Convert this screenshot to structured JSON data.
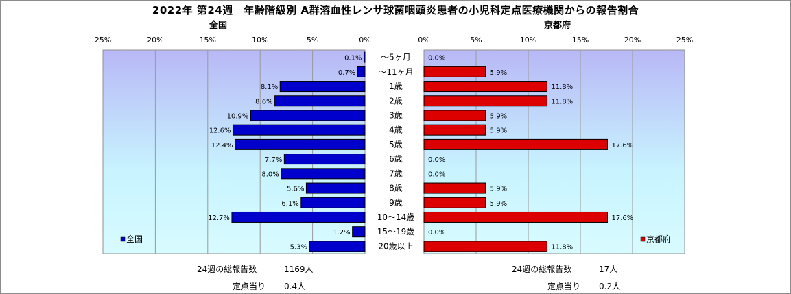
{
  "title": "2022年 第24週　年齢階級別 A群溶血性レンサ球菌咽頭炎患者の小児科定点医療機関からの報告割合",
  "colors": {
    "national": "#0000cc",
    "tokyo": "#dd0000"
  },
  "chart_data": [
    {
      "type": "bar",
      "orientation": "horizontal",
      "direction": "right-to-left",
      "title": "全国",
      "categories": [
        "〜5ヶ月",
        "〜11ヶ月",
        "1歳",
        "2歳",
        "3歳",
        "4歳",
        "5歳",
        "6歳",
        "7歳",
        "8歳",
        "9歳",
        "10〜14歳",
        "15〜19歳",
        "20歳以上"
      ],
      "series": [
        {
          "name": "全国",
          "values": [
            0.1,
            0.7,
            8.1,
            8.6,
            10.9,
            12.6,
            12.4,
            7.7,
            8.0,
            5.6,
            6.1,
            12.7,
            1.2,
            5.3
          ]
        }
      ],
      "value_labels": [
        "0.1%",
        "0.7%",
        "8.1%",
        "8.6%",
        "10.9%",
        "12.6%",
        "12.4%",
        "7.7%",
        "8.0%",
        "5.6%",
        "6.1%",
        "12.7%",
        "1.2%",
        "5.3%"
      ],
      "xlim": [
        0,
        25
      ],
      "xticks": [
        "25%",
        "20%",
        "15%",
        "10%",
        "5%",
        "0%"
      ],
      "grid": true,
      "legend": "bottom-left"
    },
    {
      "type": "bar",
      "orientation": "horizontal",
      "title": "京都府",
      "categories": [
        "〜5ヶ月",
        "〜11ヶ月",
        "1歳",
        "2歳",
        "3歳",
        "4歳",
        "5歳",
        "6歳",
        "7歳",
        "8歳",
        "9歳",
        "10〜14歳",
        "15〜19歳",
        "20歳以上"
      ],
      "series": [
        {
          "name": "京都府",
          "values": [
            0.0,
            5.9,
            11.8,
            11.8,
            5.9,
            5.9,
            17.6,
            0.0,
            0.0,
            5.9,
            5.9,
            17.6,
            0.0,
            11.8
          ]
        }
      ],
      "value_labels": [
        "0.0%",
        "5.9%",
        "11.8%",
        "11.8%",
        "5.9%",
        "5.9%",
        "17.6%",
        "0.0%",
        "0.0%",
        "5.9%",
        "5.9%",
        "17.6%",
        "0.0%",
        "11.8%"
      ],
      "xlim": [
        0,
        25
      ],
      "xticks": [
        "0%",
        "5%",
        "10%",
        "15%",
        "20%",
        "25%"
      ],
      "grid": true,
      "legend": "bottom-right"
    }
  ],
  "footer": {
    "national": {
      "total_label": "24週の総報告数",
      "total_value": "1169人",
      "per_label": "定点当り",
      "per_value": "0.4人"
    },
    "tokyo": {
      "total_label": "24週の総報告数",
      "total_value": "17人",
      "per_label": "定点当り",
      "per_value": "0.2人"
    }
  }
}
